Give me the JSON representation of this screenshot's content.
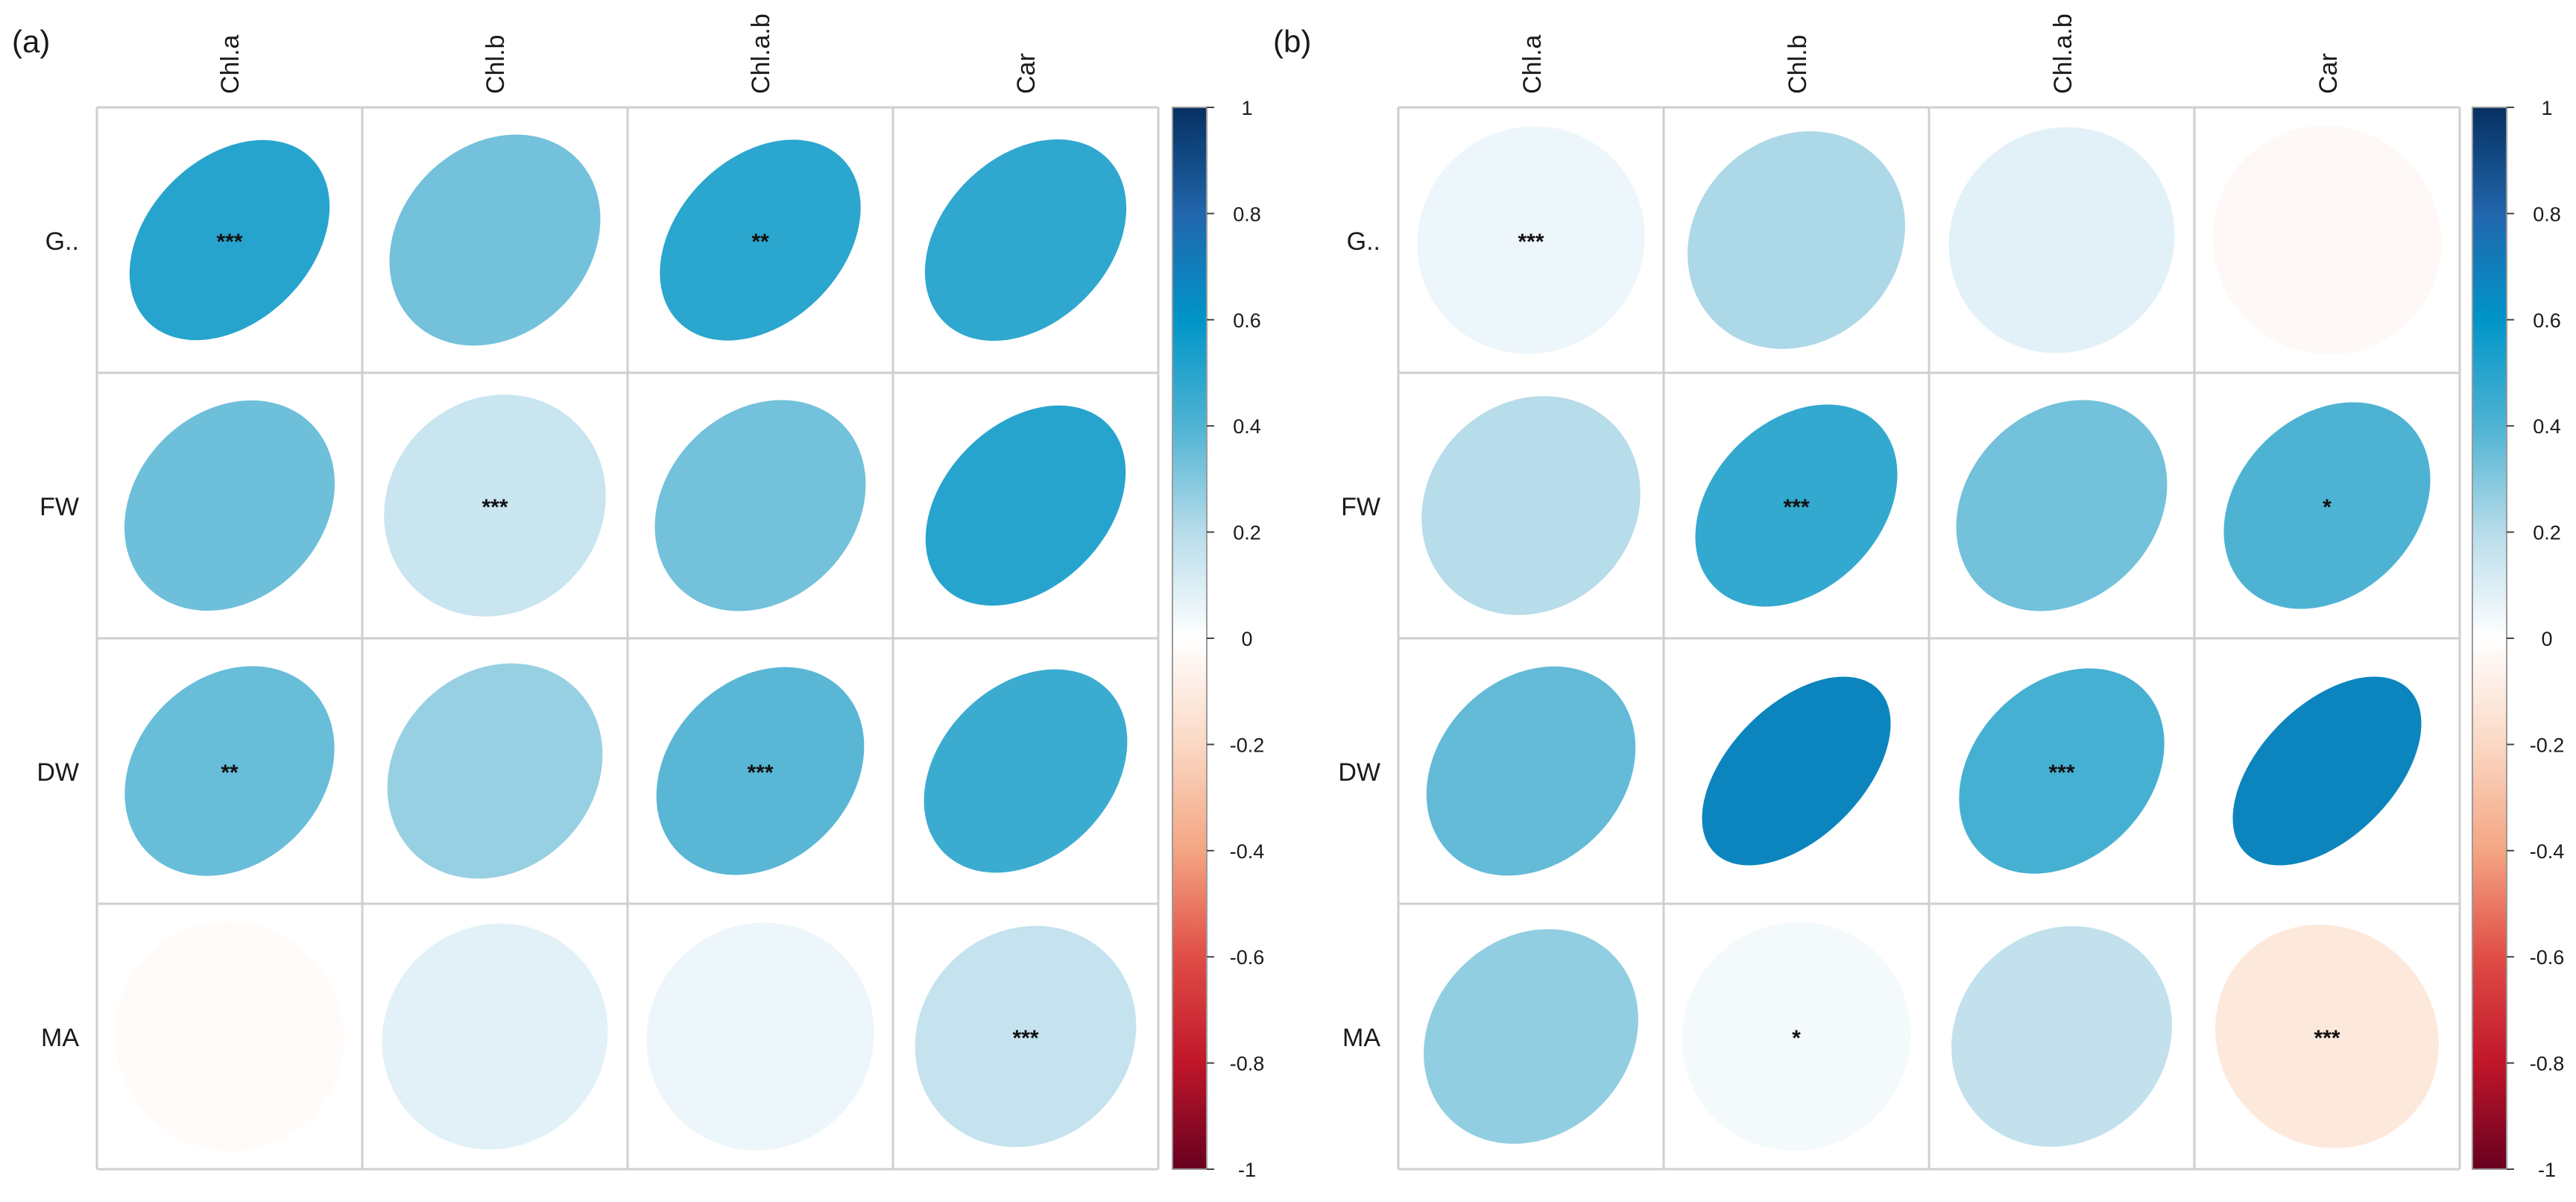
{
  "chart_data": [
    {
      "type": "correlogram",
      "panel_label": "(a)",
      "columns": [
        "Chl.a",
        "Chl.b",
        "Chl.a.b",
        "Car"
      ],
      "rows": [
        "G..",
        "FW",
        "DW",
        "MA"
      ],
      "values": [
        [
          0.5,
          0.33,
          0.49,
          0.48
        ],
        [
          0.34,
          0.15,
          0.33,
          0.5
        ],
        [
          0.35,
          0.26,
          0.38,
          0.45
        ],
        [
          -0.02,
          0.08,
          0.05,
          0.16
        ]
      ],
      "significance": [
        [
          "***",
          "",
          "**",
          ""
        ],
        [
          "",
          "***",
          "",
          ""
        ],
        [
          "**",
          "",
          "***",
          ""
        ],
        [
          "",
          "",
          "",
          "***"
        ]
      ],
      "color_scale": {
        "range": [
          -1,
          1
        ],
        "ticks": [
          "1",
          "0.8",
          "0.6",
          "0.4",
          "0.2",
          "0",
          "-0.2",
          "-0.4",
          "-0.6",
          "-0.8",
          "-1"
        ]
      }
    },
    {
      "type": "correlogram",
      "panel_label": "(b)",
      "columns": [
        "Chl.a",
        "Chl.b",
        "Chl.a.b",
        "Car"
      ],
      "rows": [
        "G..",
        "FW",
        "DW",
        "MA"
      ],
      "values": [
        [
          0.05,
          0.22,
          0.08,
          -0.03
        ],
        [
          0.2,
          0.47,
          0.33,
          0.4
        ],
        [
          0.36,
          0.67,
          0.42,
          0.67
        ],
        [
          0.27,
          0.03,
          0.17,
          -0.12
        ]
      ],
      "significance": [
        [
          "***",
          "",
          "",
          ""
        ],
        [
          "",
          "***",
          "",
          "*"
        ],
        [
          "",
          "",
          "***",
          ""
        ],
        [
          "",
          "*",
          "",
          "***"
        ]
      ],
      "color_scale": {
        "range": [
          -1,
          1
        ],
        "ticks": [
          "1",
          "0.8",
          "0.6",
          "0.4",
          "0.2",
          "0",
          "-0.2",
          "-0.4",
          "-0.6",
          "-0.8",
          "-1"
        ]
      }
    }
  ]
}
